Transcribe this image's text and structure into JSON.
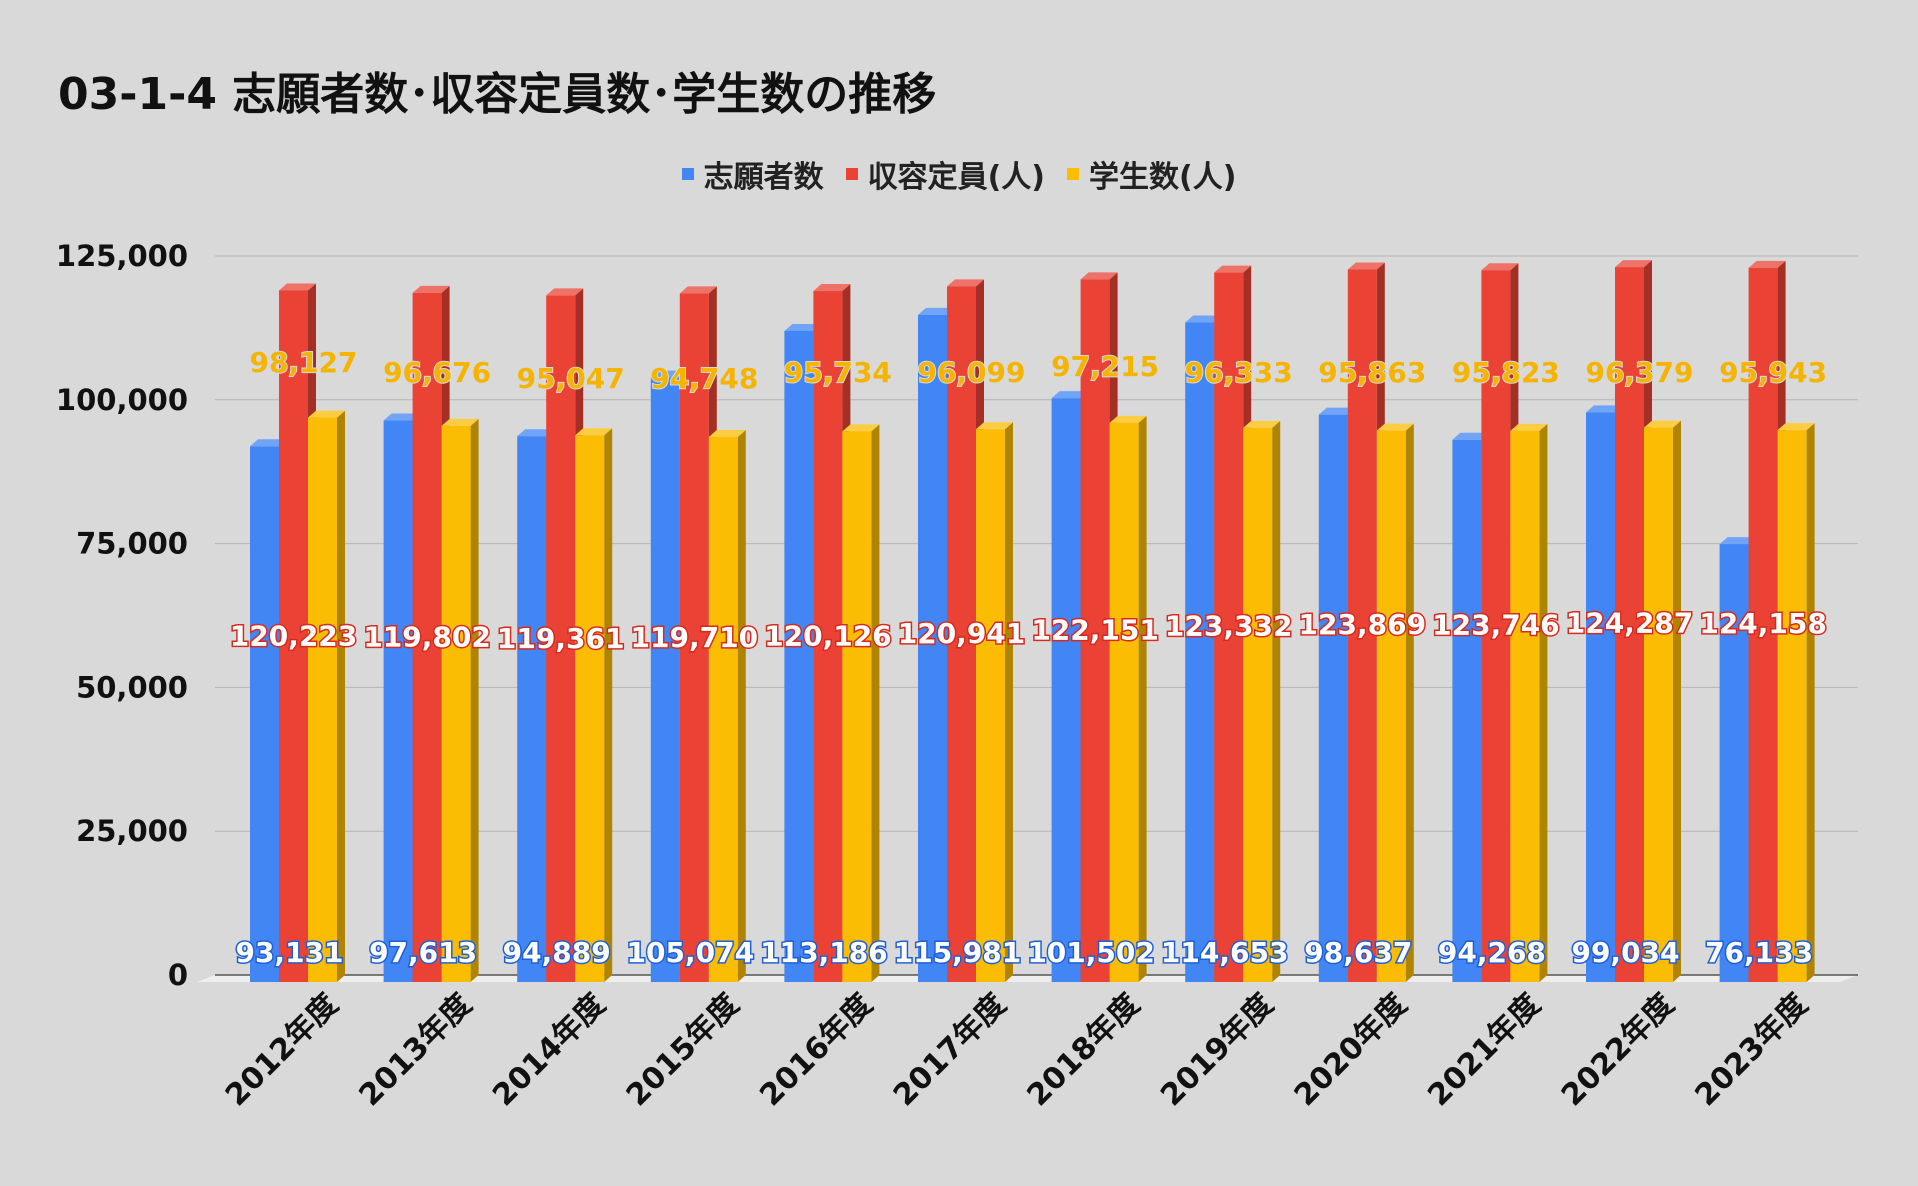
{
  "title": "03-1-4 志願者数･収容定員数･学生数の推移",
  "chart_data": {
    "type": "bar",
    "title": "03-1-4 志願者数･収容定員数･学生数の推移",
    "xlabel": "",
    "ylabel": "",
    "ylim": [
      0,
      125000
    ],
    "y_ticks": [
      "0",
      "25,000",
      "50,000",
      "75,000",
      "100,000",
      "125,000"
    ],
    "y_tick_values": [
      0,
      25000,
      50000,
      75000,
      100000,
      125000
    ],
    "grid": true,
    "legend_position": "top",
    "categories": [
      "2012年度",
      "2013年度",
      "2014年度",
      "2015年度",
      "2016年度",
      "2017年度",
      "2018年度",
      "2019年度",
      "2020年度",
      "2021年度",
      "2022年度",
      "2023年度"
    ],
    "series": [
      {
        "name": "志願者数",
        "color": "#4285f4",
        "values": [
          93131,
          97613,
          94889,
          105074,
          113186,
          115981,
          101502,
          114653,
          98637,
          94268,
          99034,
          76133
        ],
        "labels": [
          "93,131",
          "97,613",
          "94,889",
          "105,074",
          "113,186",
          "115,981",
          "101,502",
          "114,653",
          "98,637",
          "94,268",
          "99,034",
          "76,133"
        ]
      },
      {
        "name": "収容定員(人)",
        "color": "#ea4335",
        "values": [
          120223,
          119802,
          119361,
          119710,
          120126,
          120941,
          122151,
          123332,
          123869,
          123746,
          124287,
          124158
        ],
        "labels": [
          "120,223",
          "119,802",
          "119,361",
          "119,710",
          "120,126",
          "120,941",
          "122,151",
          "123,332",
          "123,869",
          "123,746",
          "124,287",
          "124,158"
        ]
      },
      {
        "name": "学生数(人)",
        "color": "#fbbc04",
        "values": [
          98127,
          96676,
          95047,
          94748,
          95734,
          96099,
          97215,
          96333,
          95863,
          95823,
          96379,
          95943
        ],
        "labels": [
          "98,127",
          "96,676",
          "95,047",
          "94,748",
          "95,734",
          "96,099",
          "97,215",
          "96,333",
          "95,863",
          "95,823",
          "96,379",
          "95,943"
        ]
      }
    ]
  }
}
